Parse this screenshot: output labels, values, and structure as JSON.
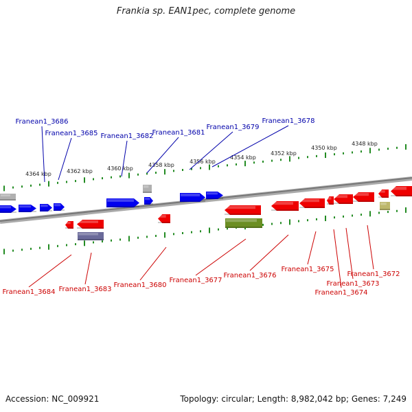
{
  "title": "Frankia sp. EAN1pec, complete genome",
  "footer": {
    "accession": "Accession: NC_009921",
    "topology": "Topology: circular; Length: 8,982,042 bp; Genes: 7,249"
  },
  "scale_labels": [
    "4364 kbp",
    "4362 kbp",
    "4360 kbp",
    "4358 kbp",
    "4356 kbp",
    "4354 kbp",
    "4352 kbp",
    "4350 kbp",
    "4348 kbp"
  ],
  "top_genes": [
    "Franean1_3686",
    "Franean1_3685",
    "Franean1_3682",
    "Franean1_3681",
    "Franean1_3679",
    "Franean1_3678"
  ],
  "bottom_genes": [
    "Franean1_3684",
    "Franean1_3683",
    "Franean1_3680",
    "Franean1_3677",
    "Franean1_3676",
    "Franean1_3675",
    "Franean1_3674",
    "Franean1_3673",
    "Franean1_3672"
  ],
  "colors": {
    "forward": "#0000ee",
    "reverse": "#ee0000",
    "label_top": "#0000aa",
    "label_bottom": "#cc0000",
    "tick": "#228b22",
    "backbone": "#888888",
    "olive": "#6b8e23",
    "khaki": "#bdb76b",
    "gray": "#b0b0b0",
    "slate": "#6a6a9a"
  }
}
